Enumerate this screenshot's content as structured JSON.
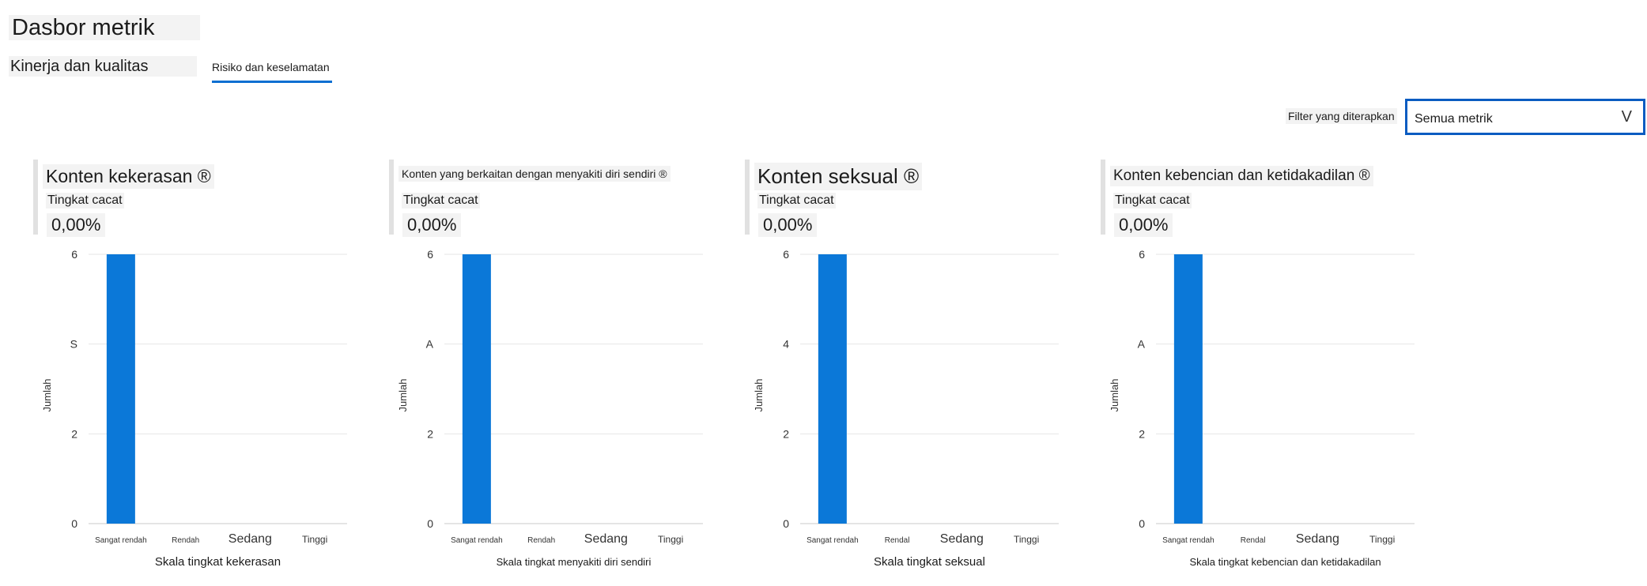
{
  "page": {
    "title": "Dasbor metrik"
  },
  "tabs": [
    {
      "label": "Kinerja dan kualitas",
      "selected": false
    },
    {
      "label": "Risiko dan keselamatan",
      "selected": true
    }
  ],
  "filter": {
    "label": "Filter yang diterapkan",
    "value": "Semua metrik",
    "chevron": "V"
  },
  "colors": {
    "accent": "#0a6fd1",
    "bar": "#0b78d8"
  },
  "cards": [
    {
      "title": "Konten kekerasan ®",
      "subtitle": "Tingkat cacat",
      "value": "0,00%"
    },
    {
      "title": "Konten yang berkaitan dengan menyakiti diri sendiri ®",
      "subtitle": "Tingkat cacat",
      "value": "0,00%"
    },
    {
      "title": "Konten seksual ®",
      "subtitle": "Tingkat cacat",
      "value": "0,00%"
    },
    {
      "title": "Konten kebencian dan ketidakadilan ®",
      "subtitle": "Tingkat cacat",
      "value": "0,00%"
    }
  ],
  "chart_data": [
    {
      "type": "bar",
      "categories": [
        "Sangat rendah",
        "Rendah",
        "Sedang",
        "Tinggi"
      ],
      "values": [
        6,
        0,
        0,
        0
      ],
      "yticks": [
        "0",
        "2",
        "S",
        "6"
      ],
      "ylim": [
        0,
        6
      ],
      "ylabel": "Jumlah",
      "xlabel": "Skala tingkat kekerasan",
      "grid": true
    },
    {
      "type": "bar",
      "categories": [
        "Sangat rendah",
        "Rendah",
        "Sedang",
        "Tinggi"
      ],
      "values": [
        6,
        0,
        0,
        0
      ],
      "yticks": [
        "0",
        "2",
        "A",
        "6"
      ],
      "ylim": [
        0,
        6
      ],
      "ylabel": "Jumlah",
      "xlabel": "Skala tingkat menyakiti diri sendiri",
      "grid": true
    },
    {
      "type": "bar",
      "categories": [
        "Sangat rendah",
        "Rendal",
        "Sedang",
        "Tinggi"
      ],
      "values": [
        6,
        0,
        0,
        0
      ],
      "yticks": [
        "0",
        "2",
        "4",
        "6"
      ],
      "ylim": [
        0,
        6
      ],
      "ylabel": "Jumlah",
      "xlabel": "Skala tingkat seksual",
      "grid": true
    },
    {
      "type": "bar",
      "categories": [
        "Sangat rendah",
        "Rendal",
        "Sedang",
        "Tinggi"
      ],
      "values": [
        6,
        0,
        0,
        0
      ],
      "yticks": [
        "0",
        "2",
        "A",
        "6"
      ],
      "ylim": [
        0,
        6
      ],
      "ylabel": "Jumlah",
      "xlabel": "Skala tingkat kebencian dan ketidakadilan",
      "grid": true
    }
  ]
}
